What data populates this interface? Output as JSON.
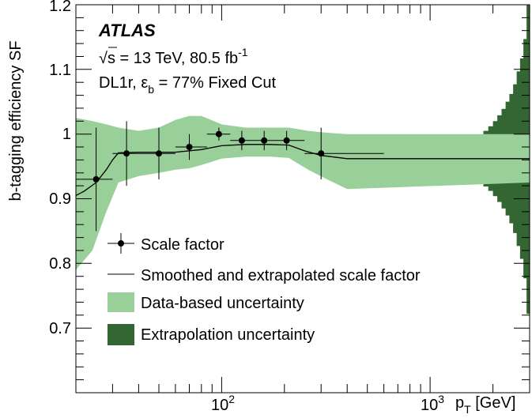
{
  "chart_data": {
    "type": "line",
    "x_scale": "log",
    "xlim": [
      20,
      3000
    ],
    "ylim": [
      0.6,
      1.2
    ],
    "xlabel_main": "p",
    "xlabel_sub": "T",
    "xlabel_unit": " [GeV]",
    "ylabel": "b-tagging efficiency SF",
    "y_ticks": [
      "0.7",
      "0.8",
      "0.9",
      "1",
      "1.1",
      "1.2"
    ],
    "x_ticks": [
      {
        "value": 100,
        "base": "10",
        "exp": "2"
      },
      {
        "value": 1000,
        "base": "10",
        "exp": "3"
      }
    ],
    "atlas_label": "ATLAS",
    "energy_label": {
      "sqrt": "√",
      "s_part": "s = 13 TeV, 80.5 fb",
      "sup": "-1"
    },
    "tagger_label": {
      "pre": "DL1r, ε",
      "sub": "b",
      "post": " = 77% Fixed Cut"
    },
    "legend": [
      {
        "key": "scale_factor",
        "label": "Scale factor"
      },
      {
        "key": "smoothed",
        "label": "Smoothed and extrapolated scale factor"
      },
      {
        "key": "data_unc",
        "label": "Data-based uncertainty"
      },
      {
        "key": "extrap_unc",
        "label": "Extrapolation uncertainty"
      }
    ],
    "colors": {
      "data_unc": "#99cf99",
      "extrap_unc": "#336633",
      "line": "#000000",
      "marker": "#000000"
    },
    "scale_factor_points": [
      {
        "x": 25,
        "x_low": 20,
        "x_high": 30,
        "y": 0.93,
        "err": 0.08
      },
      {
        "x": 35,
        "x_low": 30,
        "x_high": 40,
        "y": 0.97,
        "err": 0.05
      },
      {
        "x": 50,
        "x_low": 40,
        "x_high": 60,
        "y": 0.97,
        "err": 0.04
      },
      {
        "x": 70,
        "x_low": 60,
        "x_high": 85,
        "y": 0.98,
        "err": 0.02
      },
      {
        "x": 97,
        "x_low": 85,
        "x_high": 110,
        "y": 1.0,
        "err": 0.01
      },
      {
        "x": 125,
        "x_low": 110,
        "x_high": 140,
        "y": 0.99,
        "err": 0.015
      },
      {
        "x": 160,
        "x_low": 140,
        "x_high": 175,
        "y": 0.99,
        "err": 0.015
      },
      {
        "x": 205,
        "x_low": 175,
        "x_high": 250,
        "y": 0.99,
        "err": 0.015
      },
      {
        "x": 300,
        "x_low": 250,
        "x_high": 600,
        "y": 0.97,
        "err": 0.04
      }
    ],
    "smoothed_curve": [
      [
        20,
        0.905
      ],
      [
        22,
        0.912
      ],
      [
        25,
        0.925
      ],
      [
        28,
        0.945
      ],
      [
        30,
        0.96
      ],
      [
        32,
        0.971
      ],
      [
        40,
        0.972
      ],
      [
        60,
        0.972
      ],
      [
        80,
        0.976
      ],
      [
        100,
        0.982
      ],
      [
        130,
        0.984
      ],
      [
        170,
        0.984
      ],
      [
        210,
        0.983
      ],
      [
        250,
        0.974
      ],
      [
        300,
        0.967
      ],
      [
        400,
        0.962
      ],
      [
        3000,
        0.962
      ]
    ],
    "data_band": [
      [
        20,
        1.025,
        0.79
      ],
      [
        24,
        1.02,
        0.82
      ],
      [
        28,
        1.015,
        0.88
      ],
      [
        32,
        1.01,
        0.925
      ],
      [
        40,
        1.005,
        0.935
      ],
      [
        50,
        1.01,
        0.94
      ],
      [
        60,
        1.022,
        0.945
      ],
      [
        70,
        1.028,
        0.947
      ],
      [
        80,
        1.028,
        0.952
      ],
      [
        100,
        1.015,
        0.962
      ],
      [
        130,
        1.01,
        0.965
      ],
      [
        170,
        1.01,
        0.965
      ],
      [
        210,
        1.01,
        0.963
      ],
      [
        260,
        1.005,
        0.945
      ],
      [
        320,
        1.002,
        0.93
      ],
      [
        400,
        1.0,
        0.915
      ],
      [
        3000,
        1.0,
        0.925
      ]
    ],
    "extrap_steps": [
      [
        400,
        500,
        0.008
      ],
      [
        500,
        600,
        0.009
      ],
      [
        600,
        700,
        0.01
      ],
      [
        700,
        800,
        0.011
      ],
      [
        800,
        900,
        0.012
      ],
      [
        900,
        1000,
        0.013
      ],
      [
        1000,
        1100,
        0.015
      ],
      [
        1100,
        1200,
        0.017
      ],
      [
        1200,
        1300,
        0.019
      ],
      [
        1300,
        1400,
        0.021
      ],
      [
        1400,
        1500,
        0.024
      ],
      [
        1500,
        1600,
        0.028
      ],
      [
        1600,
        1700,
        0.032
      ],
      [
        1700,
        1800,
        0.037
      ],
      [
        1800,
        1900,
        0.043
      ],
      [
        1900,
        2000,
        0.05
      ],
      [
        2000,
        2100,
        0.058
      ],
      [
        2100,
        2200,
        0.067
      ],
      [
        2200,
        2300,
        0.077
      ],
      [
        2300,
        2400,
        0.088
      ],
      [
        2400,
        2500,
        0.1
      ],
      [
        2500,
        2600,
        0.115
      ],
      [
        2600,
        2700,
        0.135
      ],
      [
        2700,
        2800,
        0.155
      ],
      [
        2800,
        2900,
        0.185
      ],
      [
        2900,
        3000,
        0.24
      ]
    ]
  }
}
